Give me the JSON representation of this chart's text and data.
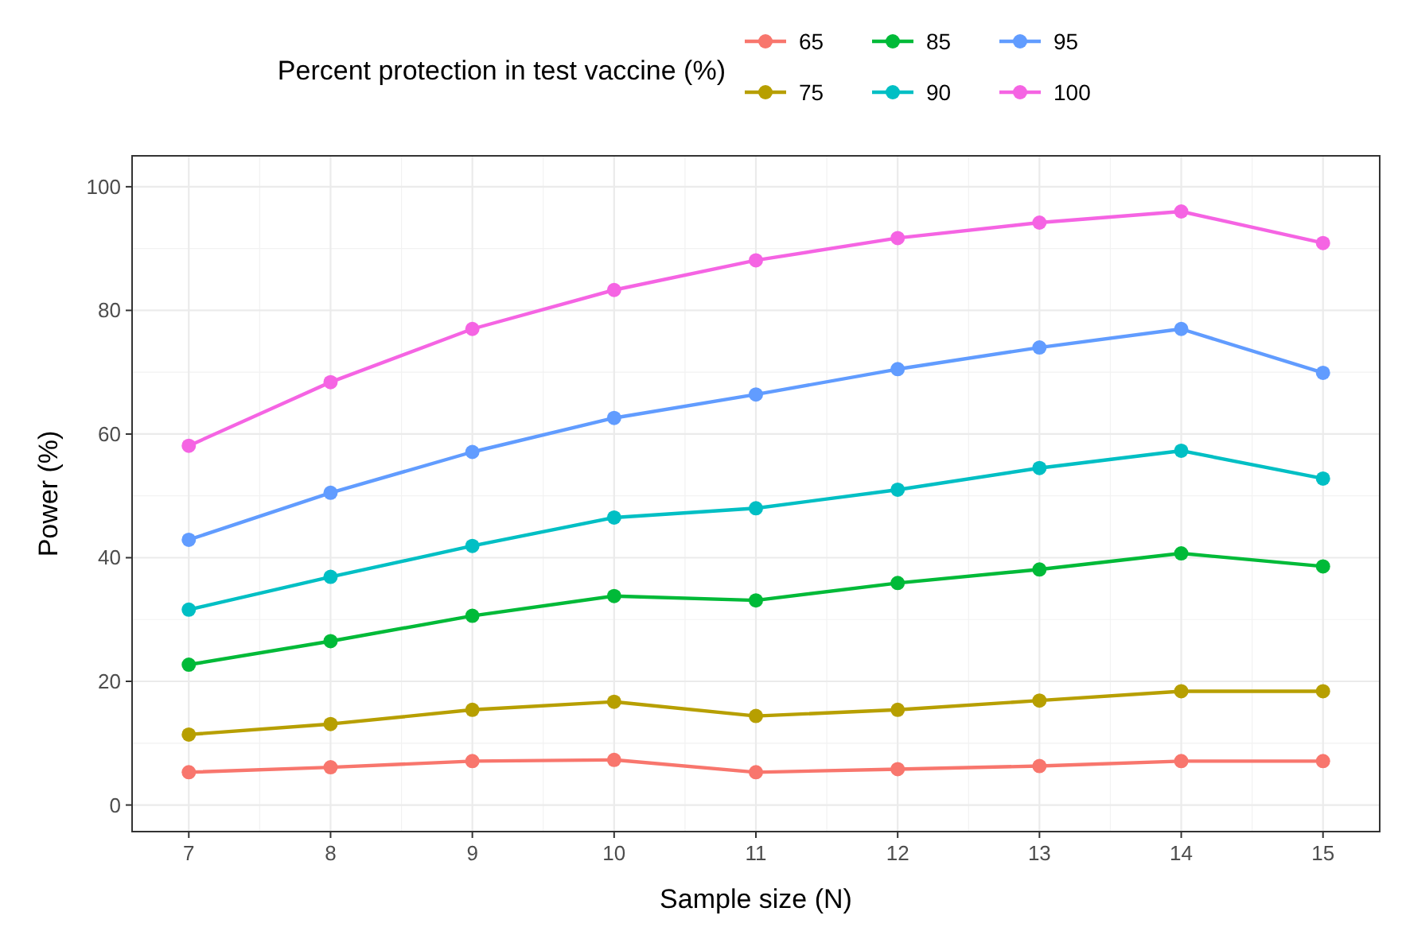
{
  "chart_data": {
    "type": "line",
    "xlabel": "Sample size (N)",
    "ylabel": "Power (%)",
    "legend_title": "Percent protection in test vaccine (%)",
    "legend": "top",
    "grid": true,
    "marker": "circle",
    "line_style": "solid",
    "x": [
      7,
      8,
      9,
      10,
      11,
      12,
      13,
      14,
      15
    ],
    "xlim": [
      6.6,
      15.4
    ],
    "xticks": [
      7,
      8,
      9,
      10,
      11,
      12,
      13,
      14,
      15
    ],
    "ylim": [
      -4.3,
      105
    ],
    "yticks": [
      0,
      20,
      40,
      60,
      80,
      100
    ],
    "series": [
      {
        "name": "65",
        "color": "#f8766d",
        "values": [
          5.3,
          6.1,
          7.1,
          7.3,
          5.3,
          5.8,
          6.3,
          7.1,
          7.1
        ]
      },
      {
        "name": "75",
        "color": "#b79f00",
        "values": [
          11.4,
          13.1,
          15.4,
          16.7,
          14.4,
          15.4,
          16.9,
          18.4,
          18.4
        ]
      },
      {
        "name": "85",
        "color": "#00ba38",
        "values": [
          22.7,
          26.5,
          30.6,
          33.8,
          33.1,
          35.9,
          38.1,
          40.7,
          38.6
        ]
      },
      {
        "name": "90",
        "color": "#00bfc4",
        "values": [
          31.6,
          36.9,
          41.9,
          46.5,
          48.0,
          51.0,
          54.5,
          57.3,
          52.8
        ]
      },
      {
        "name": "95",
        "color": "#619cff",
        "values": [
          42.9,
          50.5,
          57.1,
          62.6,
          66.4,
          70.5,
          74.0,
          77.0,
          69.9
        ]
      },
      {
        "name": "100",
        "color": "#f564e3",
        "values": [
          58.1,
          68.4,
          77.0,
          83.3,
          88.1,
          91.7,
          94.2,
          96.0,
          90.9
        ]
      }
    ]
  }
}
